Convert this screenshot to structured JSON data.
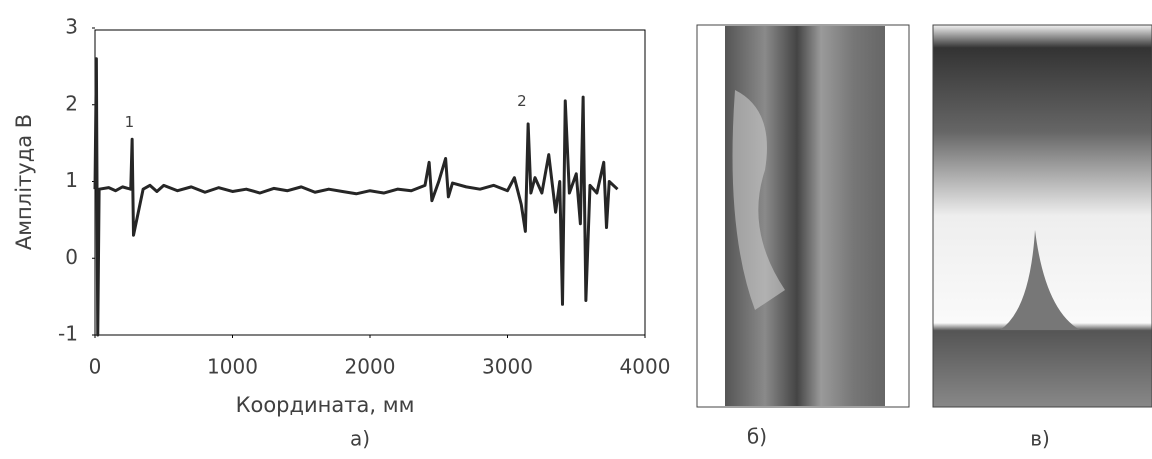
{
  "chart_data": {
    "type": "line",
    "ylabel": "Амплітуда В",
    "xlabel": "Координата, мм",
    "x": [
      0,
      10,
      20,
      30,
      100,
      150,
      200,
      260,
      270,
      280,
      350,
      400,
      450,
      500,
      600,
      700,
      800,
      900,
      1000,
      1100,
      1200,
      1300,
      1400,
      1500,
      1600,
      1700,
      1800,
      1900,
      2000,
      2100,
      2200,
      2300,
      2400,
      2430,
      2450,
      2500,
      2550,
      2570,
      2600,
      2700,
      2800,
      2900,
      3000,
      3050,
      3100,
      3130,
      3150,
      3170,
      3200,
      3250,
      3300,
      3350,
      3380,
      3400,
      3420,
      3450,
      3500,
      3530,
      3550,
      3570,
      3600,
      3650,
      3700,
      3720,
      3740,
      3800
    ],
    "values": [
      0.9,
      2.6,
      -1.0,
      0.9,
      0.92,
      0.88,
      0.93,
      0.9,
      1.55,
      0.3,
      0.9,
      0.95,
      0.87,
      0.95,
      0.88,
      0.93,
      0.86,
      0.92,
      0.87,
      0.9,
      0.85,
      0.91,
      0.88,
      0.93,
      0.86,
      0.9,
      0.87,
      0.84,
      0.88,
      0.85,
      0.9,
      0.88,
      0.95,
      1.25,
      0.75,
      1.0,
      1.3,
      0.8,
      0.98,
      0.93,
      0.9,
      0.95,
      0.88,
      1.05,
      0.7,
      0.35,
      1.75,
      0.85,
      1.05,
      0.85,
      1.35,
      0.6,
      1.0,
      -0.6,
      2.05,
      0.85,
      1.1,
      0.45,
      2.1,
      -0.55,
      0.95,
      0.85,
      1.25,
      0.4,
      1.0,
      0.9
    ],
    "color": "#262626",
    "xlim": [
      0,
      4000
    ],
    "xticks": [
      0,
      1000,
      2000,
      3000,
      4000
    ],
    "ylim": [
      -1,
      3
    ],
    "yticks": [
      3,
      2,
      1,
      0,
      -1
    ],
    "annotations": [
      {
        "text": "1",
        "x": 250,
        "y": 1.77
      },
      {
        "text": "2",
        "x": 3105,
        "y": 2.04
      }
    ]
  },
  "panel_labels": [
    "а)",
    "б)",
    "в)"
  ]
}
